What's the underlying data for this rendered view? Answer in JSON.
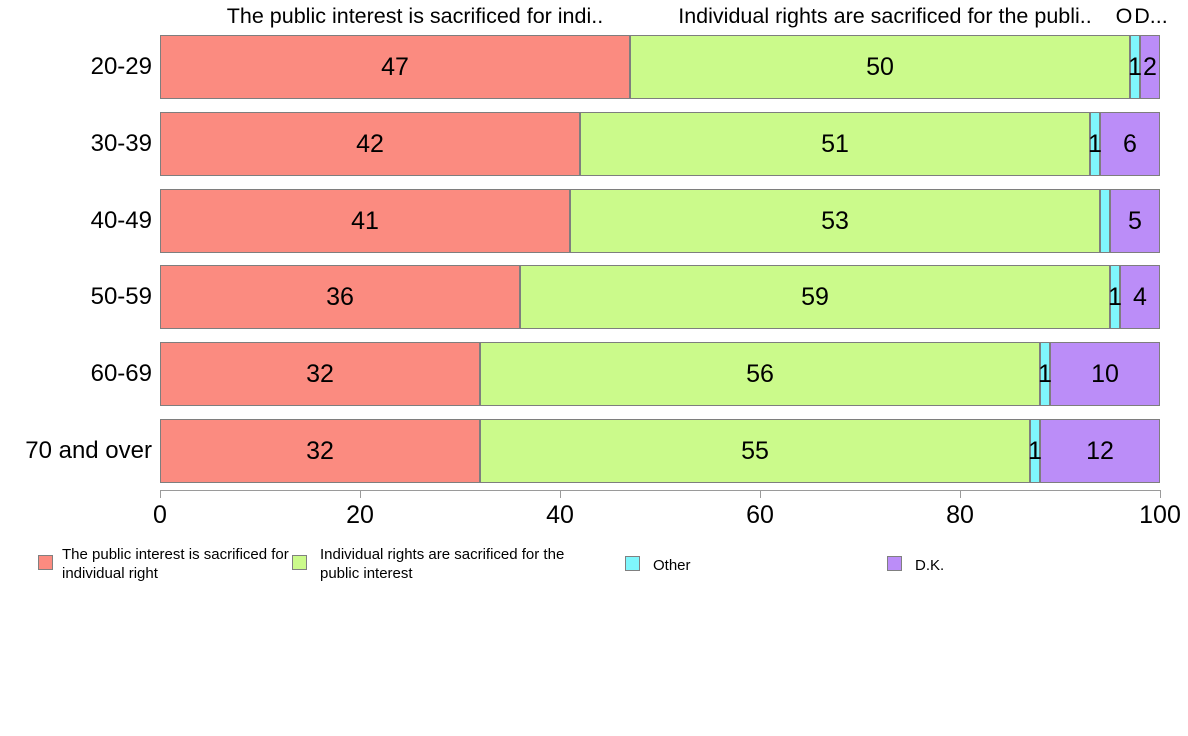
{
  "chart_data": {
    "type": "bar",
    "variant": "horizontal-stacked",
    "title": "",
    "xlabel": "",
    "ylabel": "",
    "xlim": [
      0,
      100
    ],
    "xticks": [
      0,
      20,
      40,
      60,
      80,
      100
    ],
    "grid": false,
    "categories": [
      "20-29",
      "30-39",
      "40-49",
      "50-59",
      "60-69",
      "70 and over"
    ],
    "series": [
      {
        "name": "The public interest is sacrificed for individual right",
        "color": "#FB8B80",
        "values": [
          47,
          42,
          41,
          36,
          32,
          32
        ]
      },
      {
        "name": "Individual rights are sacrificed for the public interest",
        "color": "#CBFA8B",
        "values": [
          50,
          51,
          53,
          59,
          56,
          55
        ]
      },
      {
        "name": "Other",
        "color": "#7FF6FC",
        "values": [
          1,
          1,
          1,
          1,
          1,
          1
        ]
      },
      {
        "name": "D.K.",
        "color": "#BB8DF8",
        "values": [
          2,
          6,
          5,
          4,
          10,
          12
        ]
      }
    ],
    "bar_labels": [
      [
        "47",
        "50",
        "1",
        "2"
      ],
      [
        "42",
        "51",
        "1",
        "6"
      ],
      [
        "41",
        "53",
        "",
        "5"
      ],
      [
        "36",
        "59",
        "1",
        "4"
      ],
      [
        "32",
        "56",
        "1",
        "10"
      ],
      [
        "32",
        "55",
        "1",
        "12"
      ]
    ],
    "column_headers": [
      "The public interest is sacrificed for indi..",
      "Individual rights are sacrificed for the publi..",
      "O",
      "D..."
    ],
    "legend": [
      {
        "label": "The public interest is sacrificed for individual right",
        "color": "#FB8B80"
      },
      {
        "label": "Individual rights are sacrificed for the public interest",
        "color": "#CBFA8B"
      },
      {
        "label": "Other",
        "color": "#7FF6FC"
      },
      {
        "label": "D.K.",
        "color": "#BB8DF8"
      }
    ],
    "legend_position": "bottom"
  }
}
